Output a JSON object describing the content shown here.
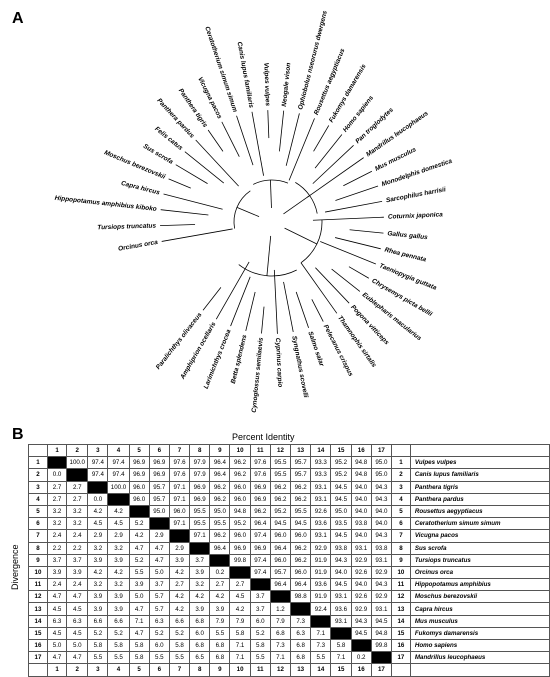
{
  "panels": {
    "a": "A",
    "b": "B"
  },
  "tree_labels": [
    "Orcinus orca",
    "Tursiops truncatus",
    "Hippopotamus amphibius kiboko",
    "Capra hircus",
    "Moschus berezovskii",
    "Sus scrofa",
    "Felis catus",
    "Panthera pardus",
    "Panthera tigris",
    "Vicugna pacos",
    "Ceratotherium simum simum",
    "Canis lupus familiaris",
    "Vulpes vulpes",
    "Neogale vison",
    "Ophiobolus nseorurus dwergens",
    "Rousettus aegyptiacus",
    "Fukomys damarensis",
    "Homo sapiens",
    "Pan troglodytes",
    "Mandrillus leucophaeus",
    "Mus musculus",
    "Monodelphis domestica",
    "Sarcophilus harrisii",
    "Coturnix japonica",
    "Gallus gallus",
    "Rhea pennata",
    "Taeniopygia guttata",
    "Chrysemys picta bellii",
    "Eublepharis macularius",
    "Pogona vitticeps",
    "Thamnophis sirtalis",
    "Pelecanus crispus",
    "Salmo salar",
    "Syngnathus scovelli",
    "Cyprinus carpio",
    "Cynoglossus semilaevis",
    "Betta splendens",
    "Larimichthys crocea",
    "Amphiprion ocellaris",
    "Paralichthys olivaceus"
  ],
  "matrix": {
    "title_top": "Percent Identity",
    "title_side": "Divergence",
    "columns": [
      "1",
      "2",
      "3",
      "4",
      "5",
      "6",
      "7",
      "8",
      "9",
      "10",
      "11",
      "12",
      "13",
      "14",
      "15",
      "16",
      "17"
    ],
    "species": [
      "Vulpes vulpes",
      "Canis lupus familiaris",
      "Panthera tigris",
      "Panthera pardus",
      "Rousettus aegyptiacus",
      "Ceratotherium simum simum",
      "Vicugna pacos",
      "Sus scrofa",
      "Tursiops truncatus",
      "Orcinus orca",
      "Hippopotamus amphibius",
      "Moschus berezovskii",
      "Capra hircus",
      "Mus musculus",
      "Fukomys damarensis",
      "Homo sapiens",
      "Mandrillus leucophaeus"
    ],
    "rows": [
      [
        "",
        "100.0",
        "97.4",
        "97.4",
        "96.9",
        "96.9",
        "97.6",
        "97.9",
        "96.4",
        "96.2",
        "97.6",
        "95.5",
        "95.7",
        "93.3",
        "95.2",
        "94.8",
        "95.0"
      ],
      [
        "0.0",
        "",
        "97.4",
        "97.4",
        "96.9",
        "96.9",
        "97.6",
        "97.9",
        "96.4",
        "96.2",
        "97.6",
        "95.5",
        "95.7",
        "93.3",
        "95.2",
        "94.8",
        "95.0"
      ],
      [
        "2.7",
        "2.7",
        "",
        "100.0",
        "96.0",
        "95.7",
        "97.1",
        "96.9",
        "96.2",
        "96.0",
        "96.9",
        "96.2",
        "96.2",
        "93.1",
        "94.5",
        "94.0",
        "94.3"
      ],
      [
        "2.7",
        "2.7",
        "0.0",
        "",
        "96.0",
        "95.7",
        "97.1",
        "96.9",
        "96.2",
        "96.0",
        "96.9",
        "96.2",
        "96.2",
        "93.1",
        "94.5",
        "94.0",
        "94.3"
      ],
      [
        "3.2",
        "3.2",
        "4.2",
        "4.2",
        "",
        "95.0",
        "96.0",
        "95.5",
        "95.0",
        "94.8",
        "96.2",
        "95.2",
        "95.5",
        "92.6",
        "95.0",
        "94.0",
        "94.0"
      ],
      [
        "3.2",
        "3.2",
        "4.5",
        "4.5",
        "5.2",
        "",
        "97.1",
        "95.5",
        "95.5",
        "95.2",
        "96.4",
        "94.5",
        "94.5",
        "93.6",
        "93.5",
        "93.8",
        "94.0"
      ],
      [
        "2.4",
        "2.4",
        "2.9",
        "2.9",
        "4.2",
        "2.9",
        "",
        "97.1",
        "96.2",
        "96.0",
        "97.4",
        "96.0",
        "96.0",
        "93.1",
        "94.5",
        "94.0",
        "94.3"
      ],
      [
        "2.2",
        "2.2",
        "3.2",
        "3.2",
        "4.7",
        "4.7",
        "2.9",
        "",
        "96.4",
        "96.9",
        "96.9",
        "96.4",
        "96.2",
        "92.9",
        "93.8",
        "93.1",
        "93.8"
      ],
      [
        "3.7",
        "3.7",
        "3.9",
        "3.9",
        "5.2",
        "4.7",
        "3.9",
        "3.7",
        "",
        "99.8",
        "97.4",
        "96.0",
        "96.2",
        "91.9",
        "94.3",
        "92.9",
        "93.1"
      ],
      [
        "3.9",
        "3.9",
        "4.2",
        "4.2",
        "5.5",
        "5.0",
        "4.2",
        "3.9",
        "0.2",
        "",
        "97.4",
        "95.7",
        "96.0",
        "91.9",
        "94.0",
        "92.6",
        "92.9"
      ],
      [
        "2.4",
        "2.4",
        "3.2",
        "3.2",
        "3.9",
        "3.7",
        "2.7",
        "3.2",
        "2.7",
        "2.7",
        "",
        "96.4",
        "96.4",
        "93.6",
        "94.5",
        "94.0",
        "94.3"
      ],
      [
        "4.7",
        "4.7",
        "3.9",
        "3.9",
        "5.0",
        "5.7",
        "4.2",
        "4.2",
        "4.2",
        "4.5",
        "3.7",
        "",
        "98.8",
        "91.9",
        "93.1",
        "92.6",
        "92.9"
      ],
      [
        "4.5",
        "4.5",
        "3.9",
        "3.9",
        "4.7",
        "5.7",
        "4.2",
        "3.9",
        "3.9",
        "4.2",
        "3.7",
        "1.2",
        "",
        "92.4",
        "93.6",
        "92.9",
        "93.1"
      ],
      [
        "6.3",
        "6.3",
        "6.6",
        "6.6",
        "7.1",
        "6.3",
        "6.6",
        "6.8",
        "7.9",
        "7.9",
        "6.0",
        "7.9",
        "7.3",
        "",
        "93.1",
        "94.3",
        "94.5"
      ],
      [
        "4.5",
        "4.5",
        "5.2",
        "5.2",
        "4.7",
        "5.2",
        "5.2",
        "6.0",
        "5.5",
        "5.8",
        "5.2",
        "6.8",
        "6.3",
        "7.1",
        "",
        "94.5",
        "94.8"
      ],
      [
        "5.0",
        "5.0",
        "5.8",
        "5.8",
        "5.8",
        "6.0",
        "5.8",
        "6.8",
        "6.8",
        "7.1",
        "5.8",
        "7.3",
        "6.8",
        "7.3",
        "5.8",
        "",
        "99.8"
      ],
      [
        "4.7",
        "4.7",
        "5.5",
        "5.5",
        "5.8",
        "5.5",
        "5.5",
        "6.5",
        "6.8",
        "7.1",
        "5.5",
        "7.1",
        "6.8",
        "5.5",
        "7.1",
        "0.2",
        ""
      ]
    ]
  }
}
